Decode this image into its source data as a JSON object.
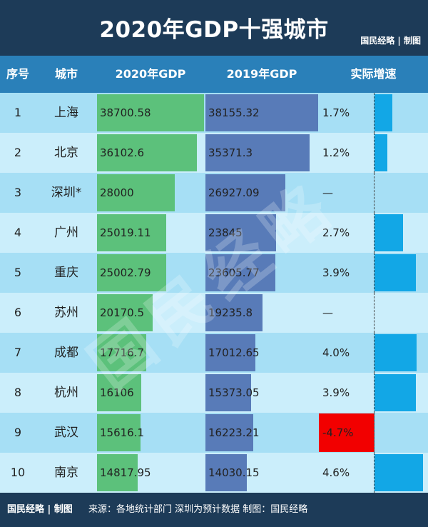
{
  "header": {
    "title": "2020年GDP十强城市",
    "brand": "国民经略 | 制图"
  },
  "columns": {
    "rank": "序号",
    "city": "城市",
    "gdp2020": "2020年GDP",
    "gdp2019": "2019年GDP",
    "growth": "实际增速"
  },
  "colors": {
    "bar2020": "#5cc17b",
    "bar2019": "#587bb8",
    "growth_bar": "#12a7e6",
    "negative_highlight": "#f20000",
    "header_bg": "#1d3b58"
  },
  "chart_data": {
    "type": "table",
    "rows": [
      {
        "rank": "1",
        "city": "上海",
        "gdp2020": 38700.58,
        "gdp2020_text": "38700.58",
        "gdp2019": 38155.32,
        "gdp2019_text": "38155.32",
        "growth": 1.7,
        "growth_text": "1.7%"
      },
      {
        "rank": "2",
        "city": "北京",
        "gdp2020": 36102.6,
        "gdp2020_text": "36102.6",
        "gdp2019": 35371.3,
        "gdp2019_text": "35371.3",
        "growth": 1.2,
        "growth_text": "1.2%"
      },
      {
        "rank": "3",
        "city": "深圳*",
        "gdp2020": 28000,
        "gdp2020_text": "28000",
        "gdp2019": 26927.09,
        "gdp2019_text": "26927.09",
        "growth": null,
        "growth_text": "—"
      },
      {
        "rank": "4",
        "city": "广州",
        "gdp2020": 25019.11,
        "gdp2020_text": "25019.11",
        "gdp2019": 23845,
        "gdp2019_text": "23845",
        "growth": 2.7,
        "growth_text": "2.7%"
      },
      {
        "rank": "5",
        "city": "重庆",
        "gdp2020": 25002.79,
        "gdp2020_text": "25002.79",
        "gdp2019": 23605.77,
        "gdp2019_text": "23605.77",
        "growth": 3.9,
        "growth_text": "3.9%"
      },
      {
        "rank": "6",
        "city": "苏州",
        "gdp2020": 20170.5,
        "gdp2020_text": "20170.5",
        "gdp2019": 19235.8,
        "gdp2019_text": "19235.8",
        "growth": null,
        "growth_text": "—"
      },
      {
        "rank": "7",
        "city": "成都",
        "gdp2020": 17716.7,
        "gdp2020_text": "17716.7",
        "gdp2019": 17012.65,
        "gdp2019_text": "17012.65",
        "growth": 4.0,
        "growth_text": "4.0%"
      },
      {
        "rank": "8",
        "city": "杭州",
        "gdp2020": 16106,
        "gdp2020_text": "16106",
        "gdp2019": 15373.05,
        "gdp2019_text": "15373.05",
        "growth": 3.9,
        "growth_text": "3.9%"
      },
      {
        "rank": "9",
        "city": "武汉",
        "gdp2020": 15616.1,
        "gdp2020_text": "15616.1",
        "gdp2019": 16223.21,
        "gdp2019_text": "16223.21",
        "growth": -4.7,
        "growth_text": "-4.7%"
      },
      {
        "rank": "10",
        "city": "南京",
        "gdp2020": 14817.95,
        "gdp2020_text": "14817.95",
        "gdp2019": 14030.15,
        "gdp2019_text": "14030.15",
        "growth": 4.6,
        "growth_text": "4.6%"
      }
    ]
  },
  "watermark": "国民经略",
  "footer": {
    "brand": "国民经略 | 制图",
    "source": "来源：各地统计部门 深圳为预计数据 制图：国民经略"
  }
}
